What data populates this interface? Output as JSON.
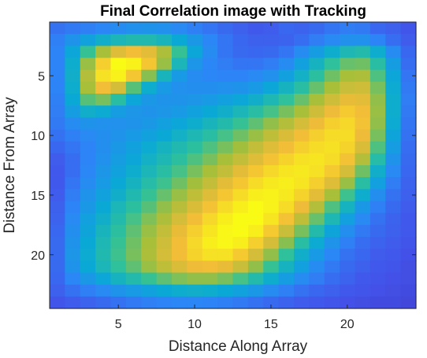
{
  "chart_data": {
    "type": "heatmap",
    "title": "Final Correlation image with Tracking",
    "xlabel": "Distance Along Array",
    "ylabel": "Distance From Array",
    "x_range": [
      1,
      24
    ],
    "y_range": [
      1,
      24
    ],
    "y_reversed": true,
    "x_ticks": [
      5,
      10,
      15,
      20
    ],
    "y_ticks": [
      5,
      10,
      15,
      20
    ],
    "colormap": "parula",
    "color_stops": [
      "#3e26a8",
      "#4352e9",
      "#2c86f7",
      "#0aa9d6",
      "#2ec19a",
      "#a5bf3a",
      "#f2bc38",
      "#f9fb15"
    ],
    "value_range": [
      0,
      1
    ],
    "grid": false,
    "values": [
      [
        0.23,
        0.25,
        0.27,
        0.29,
        0.31,
        0.33,
        0.34,
        0.33,
        0.3,
        0.27,
        0.24,
        0.21,
        0.18,
        0.16,
        0.17,
        0.2,
        0.19,
        0.21,
        0.24,
        0.26,
        0.25,
        0.2,
        0.18,
        0.15
      ],
      [
        0.27,
        0.34,
        0.4,
        0.46,
        0.5,
        0.52,
        0.52,
        0.49,
        0.43,
        0.36,
        0.29,
        0.24,
        0.2,
        0.18,
        0.18,
        0.19,
        0.22,
        0.26,
        0.3,
        0.33,
        0.33,
        0.28,
        0.22,
        0.17
      ],
      [
        0.28,
        0.42,
        0.58,
        0.72,
        0.82,
        0.86,
        0.83,
        0.73,
        0.58,
        0.42,
        0.31,
        0.24,
        0.21,
        0.2,
        0.21,
        0.24,
        0.31,
        0.38,
        0.45,
        0.51,
        0.53,
        0.45,
        0.31,
        0.2
      ],
      [
        0.28,
        0.45,
        0.7,
        0.9,
        1.0,
        0.98,
        0.88,
        0.7,
        0.5,
        0.35,
        0.29,
        0.26,
        0.24,
        0.24,
        0.26,
        0.31,
        0.39,
        0.48,
        0.57,
        0.64,
        0.65,
        0.55,
        0.38,
        0.22
      ],
      [
        0.28,
        0.46,
        0.74,
        0.94,
        0.98,
        0.88,
        0.68,
        0.49,
        0.37,
        0.31,
        0.29,
        0.28,
        0.28,
        0.3,
        0.33,
        0.39,
        0.47,
        0.56,
        0.65,
        0.72,
        0.73,
        0.61,
        0.42,
        0.24
      ],
      [
        0.28,
        0.45,
        0.72,
        0.86,
        0.8,
        0.62,
        0.45,
        0.37,
        0.33,
        0.32,
        0.32,
        0.33,
        0.34,
        0.37,
        0.42,
        0.48,
        0.55,
        0.64,
        0.72,
        0.78,
        0.79,
        0.66,
        0.44,
        0.25
      ],
      [
        0.27,
        0.43,
        0.62,
        0.66,
        0.55,
        0.42,
        0.36,
        0.34,
        0.34,
        0.35,
        0.37,
        0.39,
        0.42,
        0.46,
        0.51,
        0.57,
        0.64,
        0.72,
        0.79,
        0.84,
        0.83,
        0.69,
        0.45,
        0.26
      ],
      [
        0.26,
        0.38,
        0.46,
        0.44,
        0.38,
        0.35,
        0.34,
        0.35,
        0.37,
        0.4,
        0.43,
        0.46,
        0.5,
        0.55,
        0.6,
        0.66,
        0.72,
        0.79,
        0.85,
        0.89,
        0.86,
        0.7,
        0.45,
        0.25
      ],
      [
        0.25,
        0.31,
        0.34,
        0.33,
        0.33,
        0.34,
        0.36,
        0.39,
        0.42,
        0.45,
        0.49,
        0.53,
        0.58,
        0.63,
        0.69,
        0.74,
        0.8,
        0.85,
        0.9,
        0.92,
        0.87,
        0.69,
        0.44,
        0.24
      ],
      [
        0.23,
        0.27,
        0.3,
        0.32,
        0.34,
        0.37,
        0.4,
        0.43,
        0.47,
        0.51,
        0.55,
        0.6,
        0.65,
        0.7,
        0.76,
        0.81,
        0.86,
        0.9,
        0.93,
        0.93,
        0.85,
        0.66,
        0.41,
        0.23
      ],
      [
        0.2,
        0.24,
        0.28,
        0.32,
        0.36,
        0.4,
        0.44,
        0.48,
        0.52,
        0.56,
        0.61,
        0.66,
        0.71,
        0.77,
        0.82,
        0.86,
        0.9,
        0.93,
        0.94,
        0.91,
        0.81,
        0.61,
        0.38,
        0.22
      ],
      [
        0.17,
        0.22,
        0.28,
        0.33,
        0.38,
        0.42,
        0.47,
        0.51,
        0.56,
        0.61,
        0.66,
        0.72,
        0.77,
        0.82,
        0.87,
        0.91,
        0.94,
        0.95,
        0.93,
        0.87,
        0.74,
        0.54,
        0.34,
        0.21
      ],
      [
        0.16,
        0.22,
        0.29,
        0.35,
        0.4,
        0.45,
        0.5,
        0.55,
        0.6,
        0.66,
        0.72,
        0.77,
        0.83,
        0.88,
        0.92,
        0.95,
        0.96,
        0.94,
        0.89,
        0.8,
        0.65,
        0.46,
        0.3,
        0.2
      ],
      [
        0.16,
        0.24,
        0.31,
        0.37,
        0.43,
        0.48,
        0.54,
        0.59,
        0.65,
        0.71,
        0.77,
        0.83,
        0.88,
        0.93,
        0.96,
        0.97,
        0.95,
        0.9,
        0.82,
        0.7,
        0.55,
        0.39,
        0.26,
        0.19
      ],
      [
        0.17,
        0.26,
        0.34,
        0.4,
        0.46,
        0.52,
        0.58,
        0.64,
        0.7,
        0.76,
        0.82,
        0.88,
        0.93,
        0.97,
        0.98,
        0.96,
        0.91,
        0.83,
        0.72,
        0.59,
        0.45,
        0.32,
        0.23,
        0.18
      ],
      [
        0.18,
        0.28,
        0.36,
        0.43,
        0.5,
        0.56,
        0.62,
        0.69,
        0.75,
        0.81,
        0.87,
        0.93,
        0.97,
        1.0,
        0.98,
        0.93,
        0.85,
        0.74,
        0.61,
        0.48,
        0.36,
        0.27,
        0.21,
        0.17
      ],
      [
        0.19,
        0.3,
        0.39,
        0.46,
        0.53,
        0.6,
        0.67,
        0.73,
        0.8,
        0.86,
        0.92,
        0.97,
        1.0,
        1.0,
        0.95,
        0.87,
        0.76,
        0.64,
        0.51,
        0.39,
        0.3,
        0.23,
        0.19,
        0.16
      ],
      [
        0.2,
        0.32,
        0.41,
        0.49,
        0.56,
        0.63,
        0.7,
        0.77,
        0.84,
        0.9,
        0.95,
        0.99,
        1.0,
        0.97,
        0.89,
        0.78,
        0.66,
        0.53,
        0.41,
        0.32,
        0.25,
        0.21,
        0.18,
        0.16
      ],
      [
        0.21,
        0.34,
        0.43,
        0.51,
        0.58,
        0.65,
        0.72,
        0.79,
        0.86,
        0.92,
        0.97,
        0.99,
        0.97,
        0.9,
        0.8,
        0.68,
        0.55,
        0.44,
        0.34,
        0.27,
        0.22,
        0.19,
        0.17,
        0.15
      ],
      [
        0.21,
        0.35,
        0.44,
        0.52,
        0.59,
        0.66,
        0.73,
        0.8,
        0.86,
        0.91,
        0.94,
        0.94,
        0.89,
        0.8,
        0.69,
        0.57,
        0.46,
        0.37,
        0.29,
        0.23,
        0.2,
        0.17,
        0.16,
        0.14
      ],
      [
        0.21,
        0.34,
        0.43,
        0.5,
        0.57,
        0.63,
        0.7,
        0.76,
        0.81,
        0.85,
        0.86,
        0.84,
        0.78,
        0.69,
        0.58,
        0.48,
        0.39,
        0.31,
        0.25,
        0.21,
        0.18,
        0.16,
        0.15,
        0.13
      ],
      [
        0.2,
        0.29,
        0.36,
        0.42,
        0.48,
        0.53,
        0.58,
        0.63,
        0.67,
        0.69,
        0.69,
        0.66,
        0.6,
        0.53,
        0.45,
        0.38,
        0.31,
        0.26,
        0.22,
        0.19,
        0.16,
        0.15,
        0.14,
        0.13
      ],
      [
        0.18,
        0.23,
        0.27,
        0.3,
        0.34,
        0.37,
        0.4,
        0.43,
        0.45,
        0.46,
        0.45,
        0.43,
        0.4,
        0.36,
        0.31,
        0.27,
        0.23,
        0.2,
        0.18,
        0.16,
        0.15,
        0.14,
        0.13,
        0.12
      ],
      [
        0.15,
        0.17,
        0.19,
        0.21,
        0.23,
        0.25,
        0.27,
        0.28,
        0.29,
        0.29,
        0.28,
        0.27,
        0.25,
        0.23,
        0.21,
        0.19,
        0.17,
        0.16,
        0.15,
        0.14,
        0.13,
        0.12,
        0.12,
        0.11
      ]
    ]
  }
}
